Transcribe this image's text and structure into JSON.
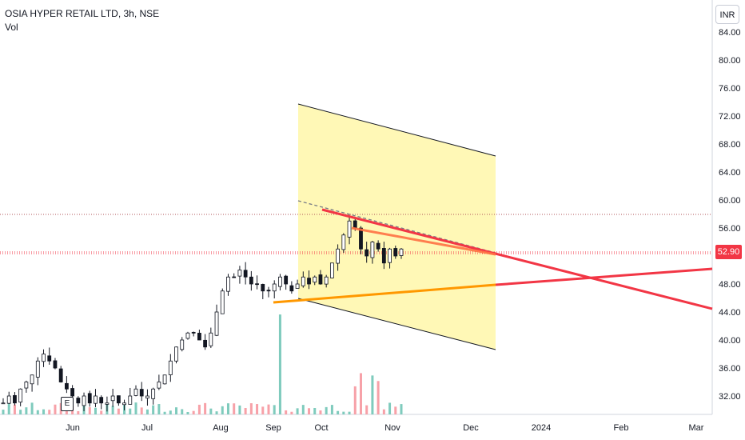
{
  "legend": {
    "symbol": "OSIA HYPER RETAIL LTD, 3h, NSE",
    "volume": "Vol"
  },
  "currency_button": "INR",
  "last_price_label": "52.90",
  "earnings_marker": "E",
  "colors": {
    "up": "#089981",
    "down": "#f23645",
    "channel_fill": "#fff59d",
    "red_line": "#f23645",
    "orange_line": "#ff9800"
  },
  "chart_data": {
    "type": "candlestick",
    "y_ticks": [
      "84.00",
      "80.00",
      "76.00",
      "72.00",
      "68.00",
      "64.00",
      "60.00",
      "56.00",
      "52.00",
      "48.00",
      "44.00",
      "40.00",
      "36.00",
      "32.00"
    ],
    "x_ticks": [
      "Jun",
      "Jul",
      "Aug",
      "Sep",
      "Oct",
      "Nov",
      "Dec",
      "2024",
      "Feb",
      "Mar"
    ],
    "ylim": [
      29,
      86
    ],
    "last_price": 52.9,
    "horizontal_levels": [
      58.2,
      52.9
    ],
    "series_close": [
      31,
      32,
      31,
      33,
      34,
      35,
      37,
      38,
      37,
      36,
      34,
      33,
      32,
      31,
      32,
      31,
      32,
      31,
      31,
      32,
      31,
      31,
      32,
      33,
      32,
      32,
      33,
      34,
      35,
      37,
      39,
      40,
      41,
      41,
      40,
      39,
      41,
      44,
      47,
      49,
      49,
      50,
      49,
      48,
      48,
      47,
      47,
      48,
      49,
      48,
      47,
      48,
      49,
      48,
      49,
      48,
      49,
      51,
      53,
      55,
      57,
      56,
      53,
      52,
      54,
      53,
      51,
      53,
      52,
      53
    ]
  }
}
